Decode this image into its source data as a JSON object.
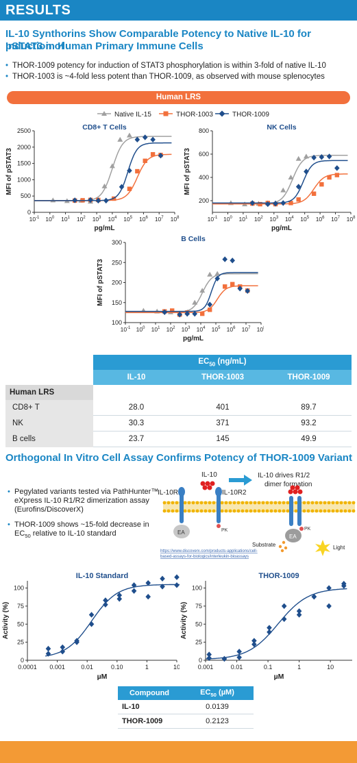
{
  "header": {
    "banner": "RESULTS"
  },
  "section1": {
    "title_line1": "IL-10 Synthorins Show Comparable Potency to Native IL-10 for Induction of",
    "title_line2": "pSTAT3 in Human Primary Immune Cells",
    "bullets": [
      "THOR-1009 potency for induction of STAT3 phosphorylation is within 3-fold of native IL-10",
      "THOR-1003 is ~4-fold less potent than THOR-1009, as observed with mouse splenocytes"
    ],
    "pill_label": "Human LRS"
  },
  "legend": {
    "items": [
      "Native IL-15",
      "THOR-1003",
      "THOR-1009"
    ]
  },
  "colors": {
    "accent": "#1a86c4",
    "orange": "#f2703c",
    "native": "#a0a0a0",
    "thor1003": "#f2703c",
    "thor1009": "#1f4e8c",
    "footer": "#f39a35"
  },
  "chart_data": [
    {
      "type": "scatter",
      "title": "CD8+ T Cells",
      "xlabel": "pg/mL",
      "ylabel": "MFI of pSTAT3",
      "xscale": "log",
      "xlim": [
        -1,
        8
      ],
      "ylim": [
        0,
        2500
      ],
      "yticks": [
        0,
        500,
        1000,
        1500,
        2000,
        2500
      ],
      "series": [
        {
          "name": "Native IL-15",
          "marker": "triangle",
          "x": [
            0.2,
            1.1,
            2.0,
            2.6,
            3.1,
            3.5,
            4.0,
            4.5,
            5.1
          ],
          "y": [
            370,
            350,
            360,
            330,
            380,
            800,
            1420,
            2230,
            2360
          ],
          "fit": {
            "bottom": 350,
            "top": 2330,
            "logec50": 4.0,
            "hill": 1.3
          }
        },
        {
          "name": "THOR-1003",
          "marker": "square",
          "x": [
            1.6,
            2.1,
            2.6,
            3.1,
            4.1,
            5.1,
            5.6,
            6.1,
            6.6,
            7.1
          ],
          "y": [
            360,
            370,
            380,
            380,
            420,
            720,
            1260,
            1580,
            1780,
            1760
          ],
          "fit": {
            "bottom": 360,
            "top": 1780,
            "logec50": 5.6,
            "hill": 1.3
          }
        },
        {
          "name": "THOR-1009",
          "marker": "diamond",
          "x": [
            1.6,
            2.6,
            3.1,
            3.6,
            4.6,
            5.1,
            5.6,
            6.1,
            6.6,
            7.1
          ],
          "y": [
            370,
            380,
            360,
            360,
            780,
            1280,
            2230,
            2300,
            2230,
            1740
          ],
          "fit": {
            "bottom": 360,
            "top": 2130,
            "logec50": 5.0,
            "hill": 1.5
          }
        }
      ]
    },
    {
      "type": "scatter",
      "title": "NK Cells",
      "xlabel": "pg/mL",
      "ylabel": "MFI of pSTAT3",
      "xscale": "log",
      "xlim": [
        -1,
        8
      ],
      "ylim": [
        100,
        800
      ],
      "yticks": [
        200,
        400,
        600,
        800
      ],
      "series": [
        {
          "name": "Native IL-15",
          "marker": "triangle",
          "x": [
            0.2,
            1.1,
            2.0,
            2.6,
            3.1,
            3.6,
            4.1,
            4.6,
            5.1
          ],
          "y": [
            180,
            170,
            175,
            180,
            180,
            290,
            400,
            560,
            580
          ],
          "fit": {
            "bottom": 172,
            "top": 590,
            "logec50": 4.2,
            "hill": 1.3
          }
        },
        {
          "name": "THOR-1003",
          "marker": "square",
          "x": [
            1.6,
            2.1,
            2.6,
            3.1,
            4.1,
            4.6,
            5.6,
            6.1,
            6.6,
            7.1
          ],
          "y": [
            175,
            170,
            180,
            170,
            180,
            210,
            260,
            340,
            400,
            420
          ],
          "fit": {
            "bottom": 172,
            "top": 430,
            "logec50": 5.6,
            "hill": 1.3
          }
        },
        {
          "name": "THOR-1009",
          "marker": "diamond",
          "x": [
            1.6,
            2.6,
            3.1,
            3.6,
            4.6,
            5.1,
            5.6,
            6.1,
            6.6,
            7.1
          ],
          "y": [
            180,
            170,
            175,
            180,
            320,
            450,
            570,
            575,
            580,
            480
          ],
          "fit": {
            "bottom": 180,
            "top": 545,
            "logec50": 4.9,
            "hill": 1.5
          }
        }
      ]
    },
    {
      "type": "scatter",
      "title": "B Cells",
      "xlabel": "pg/mL",
      "ylabel": "MFI of pSTAT3",
      "xscale": "log",
      "xlim": [
        -1,
        8
      ],
      "ylim": [
        100,
        300
      ],
      "yticks": [
        100,
        150,
        200,
        250,
        300
      ],
      "series": [
        {
          "name": "Native IL-15",
          "marker": "triangle",
          "x": [
            0.2,
            1.1,
            2.0,
            2.6,
            3.1,
            3.6,
            4.1,
            4.6,
            5.1
          ],
          "y": [
            130,
            128,
            126,
            123,
            126,
            150,
            180,
            220,
            222
          ],
          "fit": {
            "bottom": 126,
            "top": 222,
            "logec50": 4.1,
            "hill": 1.4
          }
        },
        {
          "name": "THOR-1003",
          "marker": "square",
          "x": [
            1.6,
            2.1,
            2.6,
            3.1,
            4.1,
            4.6,
            5.6,
            6.1,
            6.6,
            7.1
          ],
          "y": [
            128,
            130,
            120,
            125,
            122,
            132,
            190,
            196,
            190,
            180
          ],
          "fit": {
            "bottom": 125,
            "top": 192,
            "logec50": 5.1,
            "hill": 1.5
          }
        },
        {
          "name": "THOR-1009",
          "marker": "diamond",
          "x": [
            1.6,
            2.6,
            3.1,
            3.6,
            4.6,
            5.1,
            5.6,
            6.1,
            6.6,
            7.1
          ],
          "y": [
            126,
            120,
            122,
            122,
            145,
            210,
            258,
            255,
            185,
            179
          ],
          "fit": {
            "bottom": 128,
            "top": 225,
            "logec50": 4.7,
            "hill": 2.0
          }
        }
      ]
    },
    {
      "type": "scatter",
      "title": "IL-10 Standard",
      "xlabel": "µM",
      "ylabel": "Activity (%)",
      "xscale": "log",
      "xlim": [
        0.0001,
        10
      ],
      "ylim": [
        0,
        110
      ],
      "xticks": [
        "0.0001",
        "0.001",
        "0.01",
        "0.10",
        "1",
        "10"
      ],
      "yticks": [
        0,
        25,
        50,
        75,
        100
      ],
      "series": [
        {
          "name": "IL-10 Standard",
          "marker": "diamond",
          "x": [
            0.0005,
            0.0005,
            0.0015,
            0.0015,
            0.0045,
            0.0045,
            0.014,
            0.014,
            0.041,
            0.041,
            0.12,
            0.12,
            0.37,
            0.37,
            1.1,
            1.1,
            3.3,
            3.3,
            10,
            10
          ],
          "y": [
            9,
            16,
            12,
            18,
            27,
            25,
            50,
            63,
            77,
            83,
            85,
            90,
            104,
            96,
            88,
            107,
            102,
            113,
            115,
            104
          ],
          "fit": {
            "bottom": 3,
            "top": 105,
            "ec50": 0.0139,
            "hill": 1.0
          }
        }
      ]
    },
    {
      "type": "scatter",
      "title": "THOR-1009",
      "xlabel": "µM",
      "ylabel": "Activity (%)",
      "xscale": "log",
      "xlim": [
        0.001,
        50
      ],
      "ylim": [
        0,
        110
      ],
      "xticks": [
        "0.001",
        "0.01",
        "0.1",
        "1",
        "10"
      ],
      "yticks": [
        0,
        25,
        50,
        75,
        100
      ],
      "series": [
        {
          "name": "THOR-1009",
          "marker": "diamond",
          "x": [
            0.0013,
            0.0013,
            0.004,
            0.004,
            0.012,
            0.012,
            0.036,
            0.036,
            0.11,
            0.11,
            0.33,
            0.33,
            1.0,
            1.0,
            3.0,
            3.0,
            9.0,
            9.0,
            27,
            27
          ],
          "y": [
            3,
            8,
            2,
            2,
            12,
            4,
            22,
            27,
            45,
            39,
            75,
            57,
            68,
            63,
            88,
            88,
            75,
            100,
            106,
            103
          ],
          "fit": {
            "bottom": 1,
            "top": 100,
            "ec50": 0.2123,
            "hill": 0.9
          }
        }
      ]
    }
  ],
  "ec50_table": {
    "header": "EC50 (ng/mL)",
    "columns": [
      "IL-10",
      "THOR-1003",
      "THOR-1009"
    ],
    "group": "Human LRS",
    "rows": [
      {
        "label": "CD8+ T",
        "values": [
          "28.0",
          "401",
          "89.7"
        ]
      },
      {
        "label": "NK",
        "values": [
          "30.3",
          "371",
          "93.2"
        ]
      },
      {
        "label": "B cells",
        "values": [
          "23.7",
          "145",
          "49.9"
        ]
      }
    ]
  },
  "section2": {
    "title": "Orthogonal In Vitro Cell Assay Confirms Potency of THOR-1009 Variant",
    "bullets": [
      "Pegylated variants tested via PathHunter™ eXpress IL-10 R1/R2 dimerization assay (Eurofins/DiscoverX)",
      "THOR-1009 shows ~15-fold decrease in EC50 relative to IL-10 standard"
    ]
  },
  "diagram": {
    "il10_label": "IL-10",
    "arrow_caption": "IL-10 drives R1/2 dimer formation",
    "r1_label": "IL-10R1",
    "r2_label": "IL-10R2",
    "ea_label": "EA",
    "pk_label": "PK",
    "substrate_label": "Substrate",
    "light_label": "Light",
    "url_line1": "https://www.discoverx.com/products-applications/cell-",
    "url_line2": "based-assays-for-biologics/interleukin-bioassays"
  },
  "ec50_um_table": {
    "headers": [
      "Compound",
      "EC50 (µM)"
    ],
    "rows": [
      {
        "name": "IL-10",
        "value": "0.0139"
      },
      {
        "name": "THOR-1009",
        "value": "0.2123"
      }
    ]
  }
}
